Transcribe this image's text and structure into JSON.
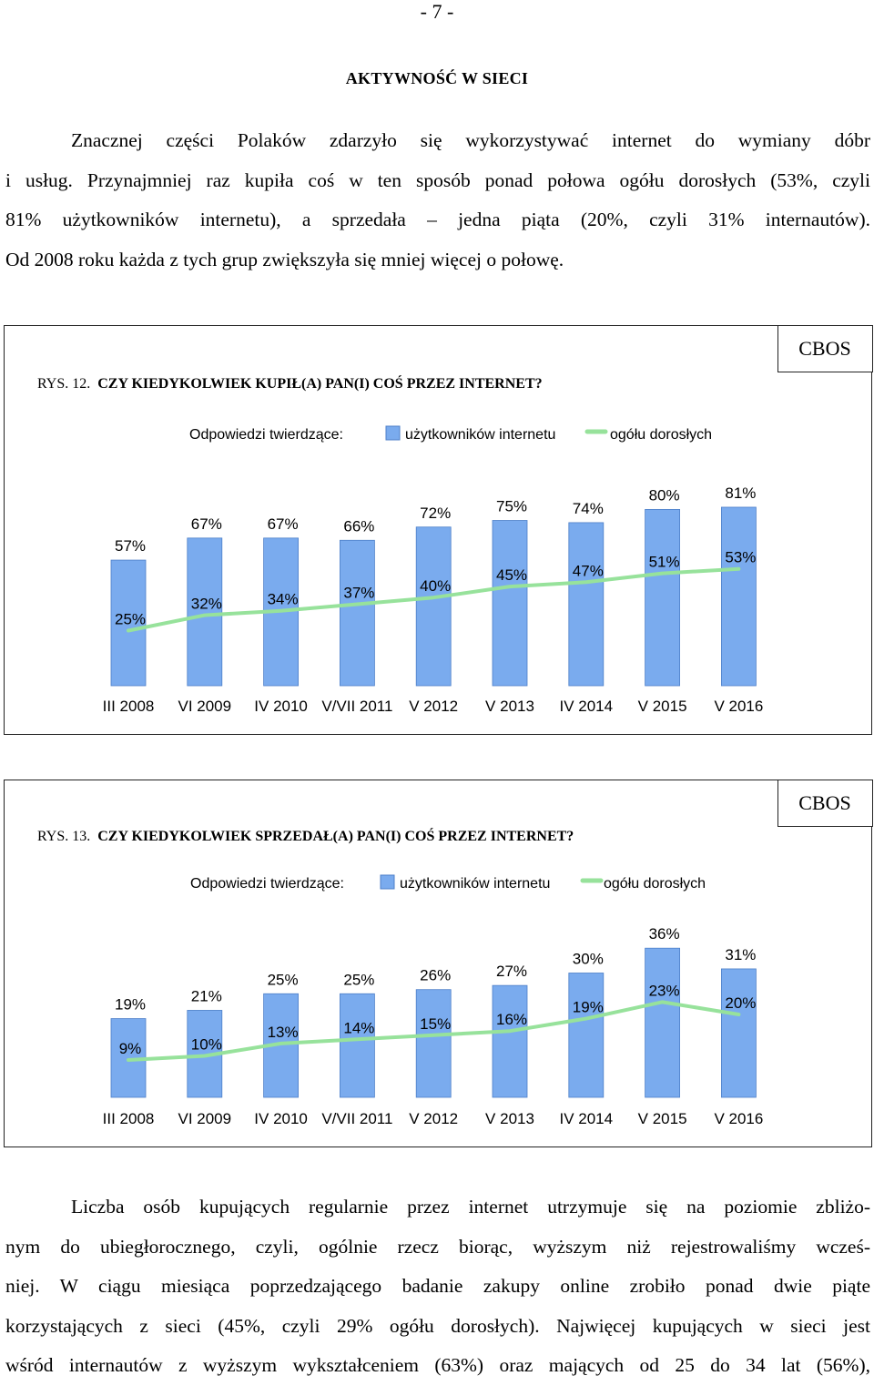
{
  "page_number": "- 7 -",
  "section_title": "AKTYWNOŚĆ W SIECI",
  "intro_lines": [
    "Znacznej części Polaków zdarzyło się wykorzystywać internet do wymiany dóbr",
    "i usług. Przynajmniej raz kupiła coś w ten sposób ponad połowa ogółu dorosłych (53%, czyli",
    "81% użytkowników internetu), a sprzedała – jedna piąta (20%, czyli 31% internautów).",
    "Od 2008 roku każda z tych grup zwiększyła się mniej więcej o połowę."
  ],
  "colors": {
    "bar": "#7aabee",
    "bar_stroke": "#4d7fc8",
    "line": "#97e29b",
    "text": "#000000"
  },
  "chart_data": [
    {
      "type": "bar",
      "figure_label": "RYS. 12.",
      "title": "CZY KIEDYKOLWIEK KUPIŁ(A) PAN(I) COŚ PRZEZ INTERNET?",
      "source": "CBOS",
      "legend_prefix": "Odpowiedzi twierdzące:",
      "categories": [
        "III 2008",
        "VI 2009",
        "IV 2010",
        "V/VII 2011",
        "V 2012",
        "V 2013",
        "IV 2014",
        "V 2015",
        "V 2016"
      ],
      "series": [
        {
          "name": "użytkowników internetu",
          "kind": "bar",
          "values": [
            57,
            67,
            67,
            66,
            72,
            75,
            74,
            80,
            81
          ],
          "labels": [
            "57%",
            "67%",
            "67%",
            "66%",
            "72%",
            "75%",
            "74%",
            "80%",
            "81%"
          ]
        },
        {
          "name": "ogółu dorosłych",
          "kind": "line",
          "values": [
            25,
            32,
            34,
            37,
            40,
            45,
            47,
            51,
            53
          ],
          "labels": [
            "25%",
            "32%",
            "34%",
            "37%",
            "40%",
            "45%",
            "47%",
            "51%",
            "53%"
          ]
        }
      ],
      "ylim": [
        0,
        100
      ]
    },
    {
      "type": "bar",
      "figure_label": "RYS. 13.",
      "title": "CZY KIEDYKOLWIEK SPRZEDAŁ(A) PAN(I) COŚ PRZEZ INTERNET?",
      "source": "CBOS",
      "legend_prefix": "Odpowiedzi twierdzące:",
      "categories": [
        "III 2008",
        "VI 2009",
        "IV 2010",
        "V/VII 2011",
        "V 2012",
        "V 2013",
        "IV 2014",
        "V 2015",
        "V 2016"
      ],
      "series": [
        {
          "name": "użytkowników internetu",
          "kind": "bar",
          "values": [
            19,
            21,
            25,
            25,
            26,
            27,
            30,
            36,
            31
          ],
          "labels": [
            "19%",
            "21%",
            "25%",
            "25%",
            "26%",
            "27%",
            "30%",
            "36%",
            "31%"
          ]
        },
        {
          "name": "ogółu dorosłych",
          "kind": "line",
          "values": [
            9,
            10,
            13,
            14,
            15,
            16,
            19,
            23,
            20
          ],
          "labels": [
            "9%",
            "10%",
            "13%",
            "14%",
            "15%",
            "16%",
            "19%",
            "23%",
            "20%"
          ]
        }
      ],
      "ylim": [
        0,
        40
      ]
    }
  ],
  "closing_lines": [
    "Liczba osób kupujących regularnie przez internet utrzymuje się na poziomie zbliżo-",
    "nym do ubiegłorocznego, czyli, ogólnie rzecz biorąc, wyższym niż rejestrowaliśmy wcześ-",
    "niej. W ciągu miesiąca poprzedzającego badanie zakupy online zrobiło ponad dwie piąte",
    "korzystających z sieci (45%, czyli 29% ogółu dorosłych). Najwięcej kupujących w sieci jest",
    "wśród internautów z wyższym wykształceniem (63%) oraz mających od 25 do 34 lat (56%),"
  ]
}
